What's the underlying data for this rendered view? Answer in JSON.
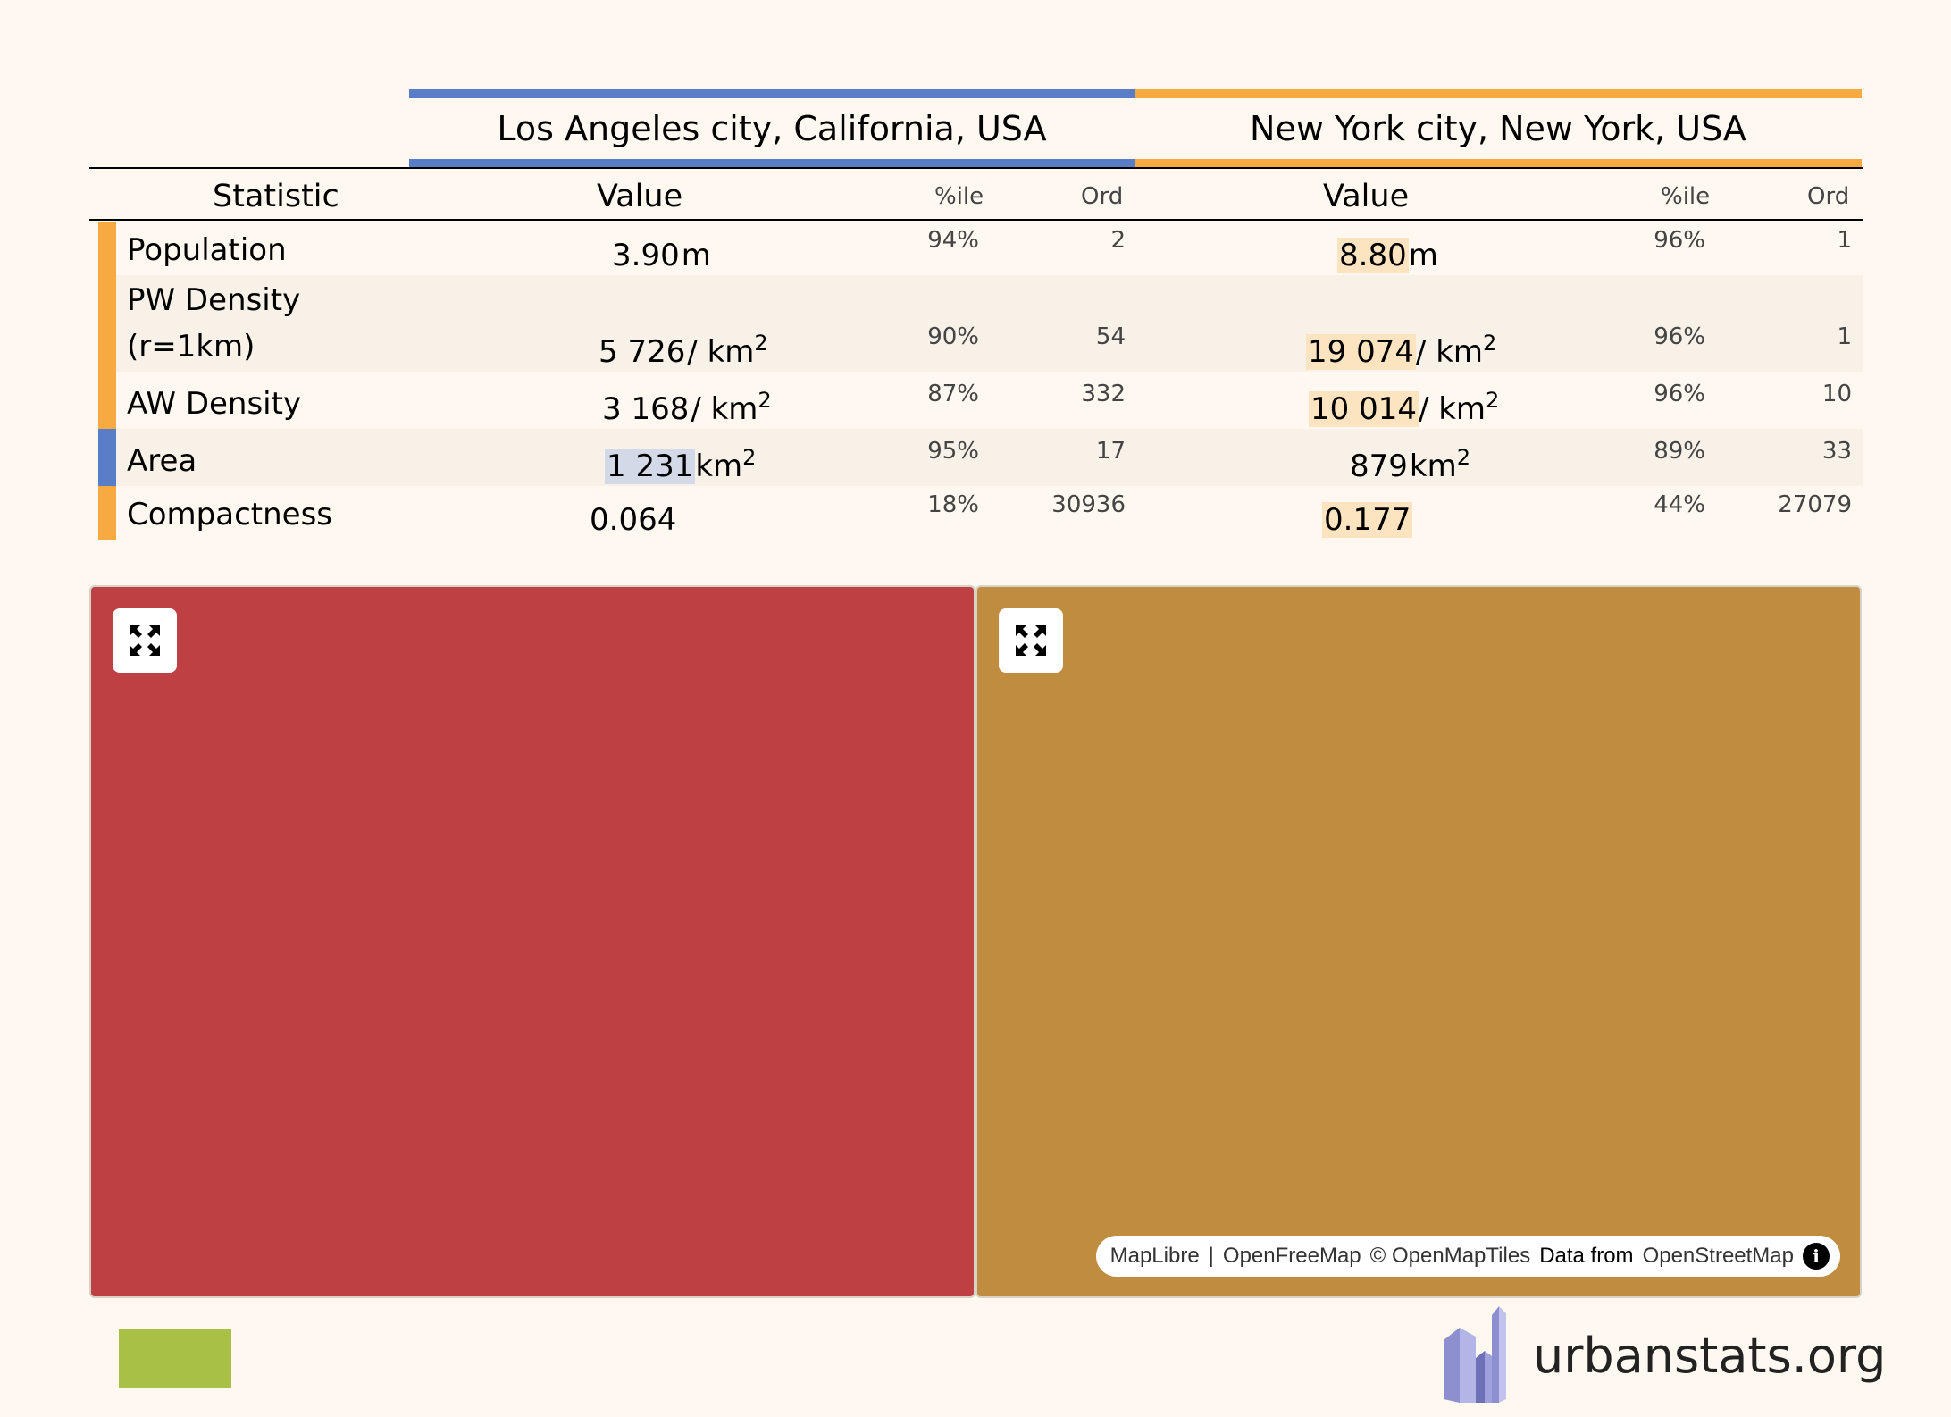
{
  "regions": [
    {
      "name": "Los Angeles city, California, USA",
      "color": "#5a7dc8"
    },
    {
      "name": "New York city, New York, USA",
      "color": "#f7aa41"
    }
  ],
  "columns": {
    "statistic": "Statistic",
    "value": "Value",
    "percentile": "%ile",
    "ordinal": "Ord"
  },
  "rows": [
    {
      "label": "Population",
      "la": {
        "num": "3.90",
        "unit": "m",
        "sup": "",
        "pct": "94%",
        "ord": "2"
      },
      "ny": {
        "num": "8.80",
        "unit": "m",
        "sup": "",
        "pct": "96%",
        "ord": "1"
      }
    },
    {
      "label_line1": "PW Density",
      "label_line2": "(r=1km)",
      "la": {
        "num": "5 726",
        "unit": "/ km",
        "sup": "2",
        "pct": "90%",
        "ord": "54"
      },
      "ny": {
        "num": "19 074",
        "unit": "/ km",
        "sup": "2",
        "pct": "96%",
        "ord": "1"
      }
    },
    {
      "label": "AW Density",
      "la": {
        "num": "3 168",
        "unit": "/ km",
        "sup": "2",
        "pct": "87%",
        "ord": "332"
      },
      "ny": {
        "num": "10 014",
        "unit": "/ km",
        "sup": "2",
        "pct": "96%",
        "ord": "10"
      }
    },
    {
      "label": "Area",
      "la": {
        "num": "1 231",
        "unit": "km",
        "sup": "2",
        "pct": "95%",
        "ord": "17"
      },
      "ny": {
        "num": "879",
        "unit": "km",
        "sup": "2",
        "pct": "89%",
        "ord": "33"
      }
    },
    {
      "label": "Compactness",
      "la": {
        "num": "0.064",
        "unit": "",
        "sup": "",
        "pct": "18%",
        "ord": "30936"
      },
      "ny": {
        "num": "0.177",
        "unit": "",
        "sup": "",
        "pct": "44%",
        "ord": "27079"
      }
    }
  ],
  "maps": {
    "la_color": "#bf4042",
    "ny_color": "#c08c40",
    "expand_icon": "expand-arrows-icon",
    "attribution": {
      "maplibre": "MapLibre",
      "sep": "|",
      "openfreemap": "OpenFreeMap",
      "copyright": "© OpenMapTiles",
      "data_from": "Data from",
      "osm": "OpenStreetMap",
      "info_glyph": "i"
    }
  },
  "legend_color": "#a8c045",
  "brand": {
    "text": "urbanstats.org",
    "logo_icon": "city-buildings-logo-icon"
  },
  "highlight_colors": {
    "blue": "#d4d9e8",
    "orange": "#fde4c0"
  }
}
